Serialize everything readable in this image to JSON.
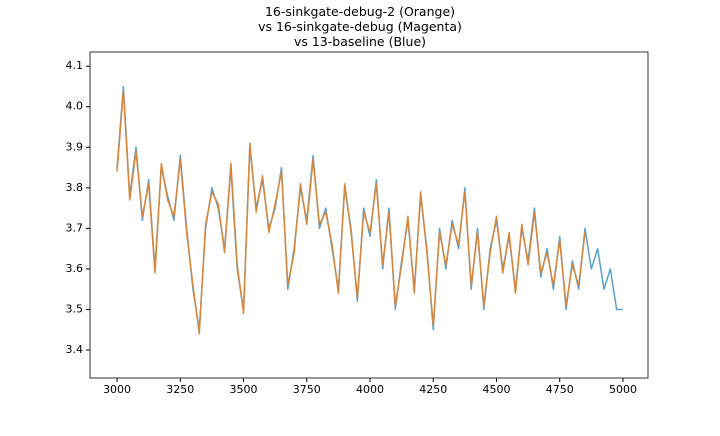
{
  "chart_data": {
    "type": "line",
    "title": "16-sinkgate-debug-2 (Orange)\nvs 16-sinkgate-debug (Magenta)\nvs 13-baseline (Blue)",
    "x": [
      3000,
      3025,
      3050,
      3075,
      3100,
      3125,
      3150,
      3175,
      3200,
      3225,
      3250,
      3275,
      3300,
      3325,
      3350,
      3375,
      3400,
      3425,
      3450,
      3475,
      3500,
      3525,
      3550,
      3575,
      3600,
      3625,
      3650,
      3675,
      3700,
      3725,
      3750,
      3775,
      3800,
      3825,
      3850,
      3875,
      3900,
      3925,
      3950,
      3975,
      4000,
      4025,
      4050,
      4075,
      4100,
      4125,
      4150,
      4175,
      4200,
      4225,
      4250,
      4275,
      4300,
      4325,
      4350,
      4375,
      4400,
      4425,
      4450,
      4475,
      4500,
      4525,
      4550,
      4575,
      4600,
      4625,
      4650,
      4675,
      4700,
      4725,
      4750,
      4775,
      4800,
      4825,
      4850,
      4875,
      4900,
      4925,
      4950,
      4975,
      5000
    ],
    "series": [
      {
        "color": "#5f9ec9",
        "values": [
          3.85,
          4.05,
          3.78,
          3.9,
          3.72,
          3.82,
          3.6,
          3.85,
          3.78,
          3.72,
          3.88,
          3.7,
          3.55,
          3.45,
          3.7,
          3.8,
          3.75,
          3.65,
          3.85,
          3.6,
          3.5,
          3.9,
          3.75,
          3.82,
          3.7,
          3.75,
          3.85,
          3.55,
          3.65,
          3.8,
          3.72,
          3.88,
          3.7,
          3.75,
          3.65,
          3.55,
          3.8,
          3.7,
          3.52,
          3.75,
          3.68,
          3.82,
          3.6,
          3.75,
          3.5,
          3.62,
          3.72,
          3.55,
          3.78,
          3.65,
          3.45,
          3.7,
          3.6,
          3.72,
          3.65,
          3.8,
          3.55,
          3.7,
          3.5,
          3.65,
          3.72,
          3.6,
          3.68,
          3.55,
          3.7,
          3.62,
          3.75,
          3.58,
          3.65,
          3.55,
          3.68,
          3.5,
          3.62,
          3.55,
          3.7,
          3.6,
          3.65,
          3.55,
          3.6,
          3.5,
          3.5
        ]
      },
      {
        "color": "#d4883f",
        "values": [
          3.84,
          4.04,
          3.77,
          3.89,
          3.73,
          3.81,
          3.59,
          3.86,
          3.77,
          3.73,
          3.87,
          3.69,
          3.56,
          3.44,
          3.71,
          3.79,
          3.76,
          3.64,
          3.86,
          3.61,
          3.49,
          3.91,
          3.74,
          3.83,
          3.69,
          3.76,
          3.84,
          3.56,
          3.64,
          3.81,
          3.71,
          3.87,
          3.71,
          3.74,
          3.66,
          3.54,
          3.81,
          3.69,
          3.53,
          3.74,
          3.69,
          3.81,
          3.61,
          3.74,
          3.51,
          3.61,
          3.73,
          3.54,
          3.79,
          3.64,
          3.46,
          3.69,
          3.61,
          3.71,
          3.66,
          3.79,
          3.56,
          3.69,
          3.51,
          3.64,
          3.73,
          3.59,
          3.69,
          3.54,
          3.71,
          3.61,
          3.74,
          3.59,
          3.64,
          3.56,
          3.67,
          3.51,
          3.61,
          3.56,
          3.69,
          null,
          null,
          null,
          null,
          null,
          null
        ]
      }
    ],
    "xlim": [
      2893,
      5099
    ],
    "ylim": [
      3.331,
      4.135
    ],
    "xticks": [
      3000,
      3250,
      3500,
      3750,
      4000,
      4250,
      4500,
      4750,
      5000
    ],
    "yticks": [
      3.4,
      3.5,
      3.6,
      3.7,
      3.8,
      3.9,
      {
        "value": 4,
        "label": "4.0"
      },
      4.1
    ]
  }
}
